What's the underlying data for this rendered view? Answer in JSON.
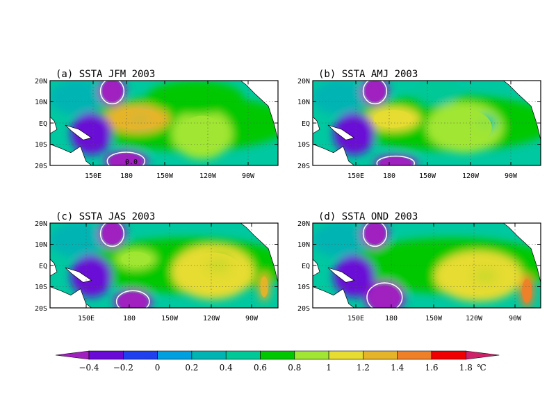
{
  "chart_data": [
    {
      "type": "heatmap",
      "title": "(a) SSTA JFM 2003",
      "y_ticks": [
        "20N",
        "10N",
        "EQ",
        "10S",
        "20S"
      ],
      "x_ticks": [
        "150E",
        "180",
        "150W",
        "120W",
        "90W"
      ],
      "contour_label": "0.0",
      "features": [
        {
          "lon": 165,
          "lat": 15,
          "rx": 10,
          "ry": 7,
          "value": -1.0
        },
        {
          "lon": 175,
          "lat": -18,
          "rx": 16,
          "ry": 5,
          "value": -0.7
        },
        {
          "lon": 183,
          "lat": 2,
          "rx": 24,
          "ry": 7,
          "value": 1.2
        },
        {
          "lon": 185,
          "lat": 2,
          "rx": 8,
          "ry": 3,
          "value": 0.5
        },
        {
          "lon": 230,
          "lat": -5,
          "rx": 22,
          "ry": 12,
          "value": 0.9
        },
        {
          "lon": 225,
          "lat": 12,
          "rx": 35,
          "ry": 8,
          "value": 0.6
        },
        {
          "lon": 150,
          "lat": -5,
          "rx": 15,
          "ry": 10,
          "value": -0.4
        }
      ]
    },
    {
      "type": "heatmap",
      "title": "(b) SSTA AMJ 2003",
      "y_ticks": [
        "20N",
        "10N",
        "EQ",
        "10S",
        "20S"
      ],
      "x_ticks": [
        "150E",
        "180",
        "150W",
        "120W",
        "90W"
      ],
      "contour_label": "",
      "features": [
        {
          "lon": 165,
          "lat": 15,
          "rx": 10,
          "ry": 7,
          "value": -1.0
        },
        {
          "lon": 180,
          "lat": -19,
          "rx": 16,
          "ry": 4,
          "value": -0.8
        },
        {
          "lon": 178,
          "lat": 2,
          "rx": 20,
          "ry": 6,
          "value": 1.1
        },
        {
          "lon": 230,
          "lat": -2,
          "rx": 28,
          "ry": 12,
          "value": 1.0
        },
        {
          "lon": 245,
          "lat": 0,
          "rx": 8,
          "ry": 4,
          "value": 0.5
        },
        {
          "lon": 210,
          "lat": 14,
          "rx": 15,
          "ry": 6,
          "value": 0.4
        },
        {
          "lon": 150,
          "lat": -5,
          "rx": 15,
          "ry": 10,
          "value": -0.4
        }
      ]
    },
    {
      "type": "heatmap",
      "title": "(c) SSTA JAS 2003",
      "y_ticks": [
        "20N",
        "10N",
        "EQ",
        "10S",
        "20S"
      ],
      "x_ticks": [
        "150E",
        "180",
        "150W",
        "120W",
        "90W"
      ],
      "contour_label": "",
      "features": [
        {
          "lon": 165,
          "lat": 15,
          "rx": 10,
          "ry": 7,
          "value": -1.0
        },
        {
          "lon": 180,
          "lat": -17,
          "rx": 14,
          "ry": 6,
          "value": -0.9
        },
        {
          "lon": 182,
          "lat": 3,
          "rx": 15,
          "ry": 5,
          "value": 0.9
        },
        {
          "lon": 238,
          "lat": -3,
          "rx": 30,
          "ry": 13,
          "value": 1.1
        },
        {
          "lon": 242,
          "lat": 0,
          "rx": 10,
          "ry": 5,
          "value": 0.6
        },
        {
          "lon": 275,
          "lat": -10,
          "rx": 4,
          "ry": 7,
          "value": 1.2
        },
        {
          "lon": 150,
          "lat": -5,
          "rx": 15,
          "ry": 10,
          "value": -0.4
        }
      ]
    },
    {
      "type": "heatmap",
      "title": "(d) SSTA OND 2003",
      "y_ticks": [
        "20N",
        "10N",
        "EQ",
        "10S",
        "20S"
      ],
      "x_ticks": [
        "150E",
        "180",
        "150W",
        "120W",
        "90W"
      ],
      "contour_label": "",
      "features": [
        {
          "lon": 165,
          "lat": 15,
          "rx": 10,
          "ry": 7,
          "value": -1.0
        },
        {
          "lon": 172,
          "lat": -15,
          "rx": 15,
          "ry": 8,
          "value": -0.9
        },
        {
          "lon": 170,
          "lat": 2,
          "rx": 14,
          "ry": 5,
          "value": 0.6
        },
        {
          "lon": 240,
          "lat": -5,
          "rx": 32,
          "ry": 12,
          "value": 1.1
        },
        {
          "lon": 245,
          "lat": -5,
          "rx": 10,
          "ry": 5,
          "value": 0.6
        },
        {
          "lon": 275,
          "lat": -12,
          "rx": 5,
          "ry": 8,
          "value": 1.5
        },
        {
          "lon": 150,
          "lat": -5,
          "rx": 15,
          "ry": 10,
          "value": -0.4
        }
      ]
    }
  ],
  "colorbar": {
    "labels": [
      "-0.4",
      "-0.2",
      "0",
      "0.2",
      "0.4",
      "0.6",
      "0.8",
      "1",
      "1.2",
      "1.4",
      "1.6",
      "1.8"
    ],
    "unit": "℃",
    "colors": [
      "#a020c0",
      "#6a0ad6",
      "#2040f0",
      "#00a0e0",
      "#00b4b4",
      "#00c896",
      "#00c800",
      "#a0e632",
      "#e6dc32",
      "#e6b428",
      "#f08028",
      "#f00000",
      "#d0206a"
    ]
  }
}
